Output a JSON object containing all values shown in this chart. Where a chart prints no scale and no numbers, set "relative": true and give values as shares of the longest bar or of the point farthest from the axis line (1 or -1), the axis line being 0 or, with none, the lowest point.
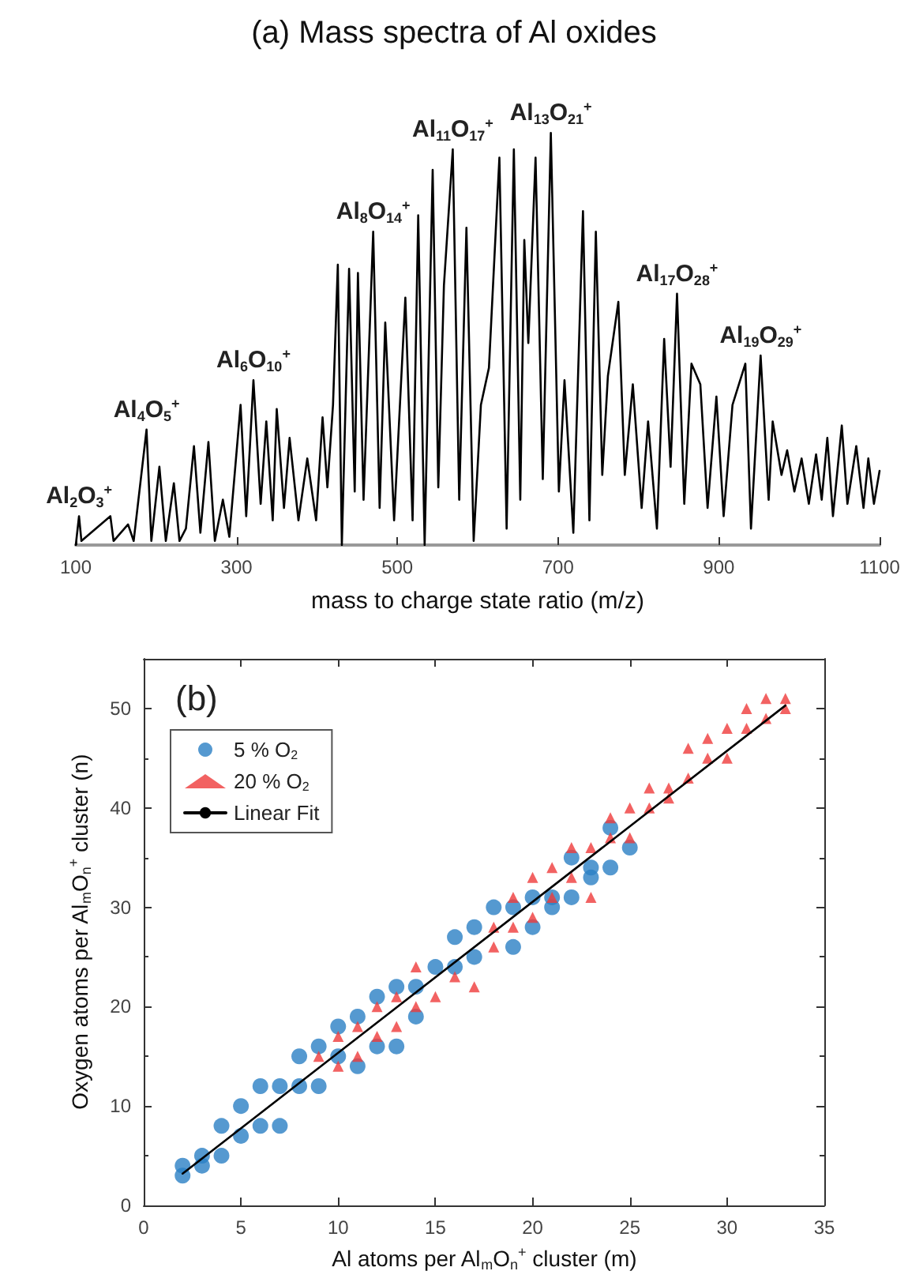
{
  "chart_data": [
    {
      "type": "line",
      "title": "(a) Mass spectra of Al oxides",
      "xlabel": "mass to charge state ratio (m/z)",
      "relative": true,
      "xlim": [
        100,
        1100
      ],
      "xticks": [
        100,
        300,
        500,
        700,
        900,
        1100
      ],
      "tick_labels": "x",
      "marker": "none",
      "annotations": [
        {
          "text": "Al$_{2}$O$_{3}$$^{+}$",
          "x": 104,
          "y": 0.07
        },
        {
          "text": "Al$_{4}$O$_{5}$$^{+}$",
          "x": 188,
          "y": 0.28
        },
        {
          "text": "Al$_{6}$O$_{10}$$^{+}$",
          "x": 321,
          "y": 0.4
        },
        {
          "text": "Al$_{8}$O$_{14}$$^{+}$",
          "x": 470,
          "y": 0.76
        },
        {
          "text": "Al$_{11}$O$_{17}$$^{+}$",
          "x": 569,
          "y": 0.96
        },
        {
          "text": "Al$_{13}$O$_{21}$$^{+}$",
          "x": 691,
          "y": 1
        },
        {
          "text": "Al$_{17}$O$_{28}$$^{+}$",
          "x": 848,
          "y": 0.61
        },
        {
          "text": "Al$_{19}$O$_{29}$$^{+}$",
          "x": 952,
          "y": 0.46
        }
      ],
      "series": [
        {
          "color": "#000000",
          "x": [
            100,
            104,
            107,
            143,
            147,
            165,
            172,
            188,
            194,
            204,
            212,
            222,
            229,
            237,
            247,
            255,
            265,
            273,
            283,
            291,
            305,
            312,
            321,
            330,
            337,
            345,
            350,
            359,
            366,
            377,
            388,
            399,
            407,
            413,
            420,
            426,
            431,
            440,
            447,
            451,
            458,
            470,
            478,
            485,
            496,
            510,
            519,
            526,
            534,
            544,
            551,
            558,
            569,
            577,
            586,
            595,
            604,
            614,
            627,
            636,
            645,
            653,
            658,
            663,
            672,
            681,
            691,
            701,
            708,
            719,
            731,
            739,
            747,
            755,
            762,
            775,
            783,
            793,
            804,
            812,
            823,
            832,
            840,
            848,
            857,
            866,
            877,
            886,
            897,
            906,
            917,
            933,
            940,
            952,
            962,
            967,
            978,
            985,
            994,
            1003,
            1012,
            1021,
            1028,
            1035,
            1042,
            1053,
            1060,
            1071,
            1080,
            1086,
            1093,
            1100
          ],
          "values": [
            0,
            0.07,
            0.01,
            0.07,
            0.01,
            0.05,
            0.01,
            0.28,
            0.01,
            0.19,
            0.01,
            0.15,
            0.01,
            0.04,
            0.24,
            0.03,
            0.25,
            0.01,
            0.11,
            0.02,
            0.34,
            0.07,
            0.4,
            0.1,
            0.3,
            0.06,
            0.33,
            0.09,
            0.26,
            0.06,
            0.21,
            0.06,
            0.31,
            0.14,
            0.34,
            0.68,
            0,
            0.67,
            0.13,
            0.66,
            0.11,
            0.76,
            0.09,
            0.54,
            0.06,
            0.6,
            0.06,
            0.8,
            0,
            0.91,
            0.14,
            0.63,
            0.96,
            0.11,
            0.77,
            0.01,
            0.34,
            0.43,
            0.94,
            0.04,
            0.96,
            0.11,
            0.74,
            0.49,
            0.94,
            0.16,
            1,
            0.13,
            0.4,
            0.03,
            0.81,
            0.06,
            0.76,
            0.17,
            0.41,
            0.59,
            0.17,
            0.39,
            0.09,
            0.3,
            0.04,
            0.5,
            0.19,
            0.61,
            0.1,
            0.44,
            0.39,
            0.09,
            0.36,
            0.07,
            0.34,
            0.44,
            0.04,
            0.46,
            0.11,
            0.3,
            0.17,
            0.23,
            0.13,
            0.21,
            0.1,
            0.22,
            0.11,
            0.26,
            0.07,
            0.29,
            0.1,
            0.24,
            0.09,
            0.21,
            0.1,
            0.18
          ]
        }
      ]
    },
    {
      "type": "scatter",
      "title": "(b)",
      "xlabel": "Al atoms per Al$_{m}$O$_{n}$$^{+}$ cluster (m)",
      "ylabel": "Oxygen atoms per Al$_{m}$O$_{n}$$^{+}$ cluster (n)",
      "xlim": [
        0,
        35
      ],
      "xticks": [
        0,
        5,
        10,
        15,
        20,
        25,
        30,
        35
      ],
      "ylim": [
        0,
        55
      ],
      "yticks": [
        0,
        10,
        20,
        30,
        40,
        50
      ],
      "legend": "top left",
      "series": [
        {
          "name": "5 % O$_{2}$",
          "color": "#2a7fc4",
          "marker": "circle",
          "x": [
            2,
            2,
            3,
            3,
            4,
            4,
            5,
            5,
            6,
            6,
            7,
            7,
            8,
            8,
            9,
            9,
            10,
            10,
            11,
            11,
            12,
            12,
            13,
            13,
            14,
            14,
            15,
            16,
            16,
            17,
            17,
            18,
            19,
            19,
            20,
            20,
            21,
            21,
            22,
            22,
            23,
            23,
            24,
            24,
            25
          ],
          "values": [
            3,
            4,
            4,
            5,
            5,
            8,
            7,
            10,
            8,
            12,
            8,
            12,
            12,
            15,
            12,
            16,
            15,
            18,
            14,
            19,
            16,
            21,
            16,
            22,
            19,
            22,
            24,
            24,
            27,
            25,
            28,
            30,
            26,
            30,
            28,
            31,
            30,
            31,
            31,
            35,
            33,
            34,
            34,
            38,
            36
          ]
        },
        {
          "name": "20 % O$_{2}$",
          "color": "#ef3b3b",
          "marker": "triangle",
          "x": [
            9,
            10,
            10,
            11,
            11,
            12,
            12,
            13,
            13,
            14,
            14,
            15,
            16,
            17,
            18,
            18,
            19,
            19,
            20,
            20,
            21,
            21,
            22,
            22,
            23,
            23,
            24,
            24,
            25,
            25,
            26,
            26,
            27,
            27,
            28,
            28,
            29,
            29,
            30,
            30,
            31,
            31,
            32,
            32,
            33,
            33
          ],
          "values": [
            15,
            14,
            17,
            15,
            18,
            17,
            20,
            18,
            21,
            20,
            24,
            21,
            23,
            22,
            26,
            28,
            28,
            31,
            29,
            33,
            31,
            34,
            33,
            36,
            31,
            36,
            37,
            39,
            37,
            40,
            40,
            42,
            41,
            42,
            43,
            46,
            45,
            47,
            45,
            48,
            48,
            50,
            49,
            51,
            50,
            51
          ]
        },
        {
          "name": "Linear Fit",
          "type": "line",
          "color": "#000000",
          "marker": "none",
          "line_style": "solid",
          "x": [
            2,
            33
          ],
          "values": [
            3.2,
            50.3
          ]
        }
      ]
    }
  ]
}
